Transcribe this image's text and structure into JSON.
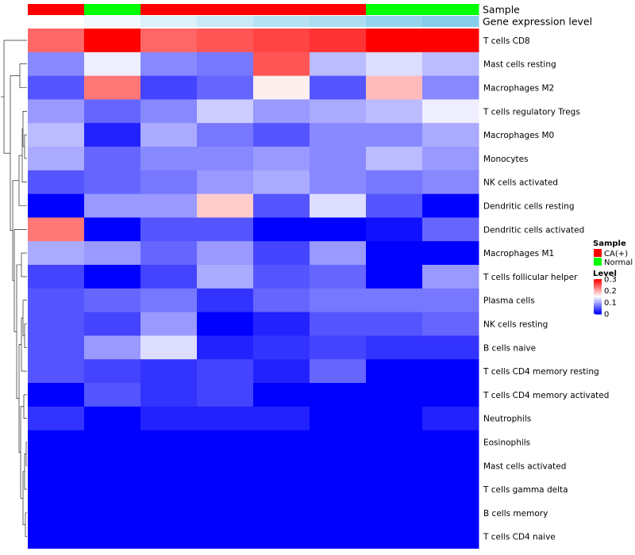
{
  "chart_data": {
    "type": "heatmap",
    "title": "",
    "annotation_labels": {
      "sample": "Sample",
      "gene": "Gene expression level"
    },
    "sample_annotation": [
      "CA(+)",
      "Normal",
      "CA(+)",
      "CA(+)",
      "CA(+)",
      "CA(+)",
      "Normal",
      "Normal"
    ],
    "gene_expression_annotation": [
      0,
      0.6,
      1.4,
      2.2,
      3.0,
      3.4,
      4.3,
      4.9
    ],
    "rows": [
      "T cells CD8",
      "Mast cells resting",
      "Macrophages M2",
      "T cells regulatory  Tregs",
      "Macrophages M0",
      "Monocytes",
      "NK cells activated",
      "Dendritic cells resting",
      "Dendritic cells activated",
      "Macrophages M1",
      "T cells follicular helper",
      "Plasma cells",
      "NK cells resting",
      "B cells naive",
      "T cells CD4 memory resting",
      "T cells CD4 memory activated",
      "Neutrophils",
      "Eosinophils",
      "Mast cells activated",
      "T cells gamma delta",
      "B cells memory",
      "T cells CD4 naive"
    ],
    "values": [
      [
        0.24,
        0.3,
        0.24,
        0.25,
        0.26,
        0.27,
        0.3,
        0.3
      ],
      [
        0.08,
        0.14,
        0.08,
        0.07,
        0.25,
        0.11,
        0.13,
        0.11
      ],
      [
        0.05,
        0.23,
        0.04,
        0.06,
        0.16,
        0.05,
        0.19,
        0.08
      ],
      [
        0.09,
        0.06,
        0.08,
        0.12,
        0.09,
        0.1,
        0.11,
        0.14
      ],
      [
        0.11,
        0.02,
        0.1,
        0.07,
        0.05,
        0.08,
        0.08,
        0.1
      ],
      [
        0.1,
        0.06,
        0.08,
        0.08,
        0.09,
        0.08,
        0.11,
        0.09
      ],
      [
        0.05,
        0.06,
        0.07,
        0.09,
        0.1,
        0.08,
        0.07,
        0.08
      ],
      [
        0.0,
        0.09,
        0.09,
        0.18,
        0.05,
        0.13,
        0.05,
        0.0
      ],
      [
        0.23,
        0.0,
        0.05,
        0.05,
        0.0,
        0.0,
        0.01,
        0.06
      ],
      [
        0.1,
        0.09,
        0.06,
        0.09,
        0.04,
        0.09,
        0.0,
        0.0
      ],
      [
        0.04,
        0.0,
        0.04,
        0.1,
        0.05,
        0.06,
        0.0,
        0.09
      ],
      [
        0.05,
        0.06,
        0.07,
        0.03,
        0.06,
        0.07,
        0.07,
        0.07
      ],
      [
        0.05,
        0.04,
        0.09,
        0.0,
        0.02,
        0.05,
        0.05,
        0.06
      ],
      [
        0.05,
        0.09,
        0.13,
        0.02,
        0.03,
        0.04,
        0.03,
        0.03
      ],
      [
        0.05,
        0.04,
        0.03,
        0.04,
        0.02,
        0.06,
        0.0,
        0.0
      ],
      [
        0.0,
        0.05,
        0.03,
        0.04,
        0.0,
        0.0,
        0.0,
        0.0
      ],
      [
        0.03,
        0.0,
        0.02,
        0.02,
        0.02,
        0.0,
        0.0,
        0.02
      ],
      [
        0.0,
        0.0,
        0.0,
        0.0,
        0.0,
        0.0,
        0.0,
        0.0
      ],
      [
        0.0,
        0.0,
        0.0,
        0.0,
        0.0,
        0.0,
        0.0,
        0.0
      ],
      [
        0.0,
        0.0,
        0.0,
        0.0,
        0.0,
        0.0,
        0.0,
        0.0
      ],
      [
        0.0,
        0.0,
        0.0,
        0.0,
        0.0,
        0.0,
        0.0,
        0.0
      ],
      [
        0.0,
        0.0,
        0.0,
        0.0,
        0.0,
        0.0,
        0.0,
        0.0
      ]
    ],
    "color_scale": {
      "min": 0,
      "mid": 0.15,
      "max": 0.3,
      "low": "#0000ff",
      "midColor": "#ffffff",
      "high": "#ff0000"
    },
    "sample_colors": {
      "CA(+)": "#ff0000",
      "Normal": "#00ff00"
    },
    "gene_colors": {
      "low": "#ffffff",
      "high": "#87ceeb"
    },
    "legend": {
      "sample_title": "Sample",
      "sample_entries": [
        "CA(+)",
        "Normal"
      ],
      "level_title": "Level",
      "level_ticks": [
        "0.3",
        "0.2",
        "0.1",
        "0"
      ],
      "placement": "right"
    },
    "dendrogram": "row clustering dendrogram on left"
  }
}
